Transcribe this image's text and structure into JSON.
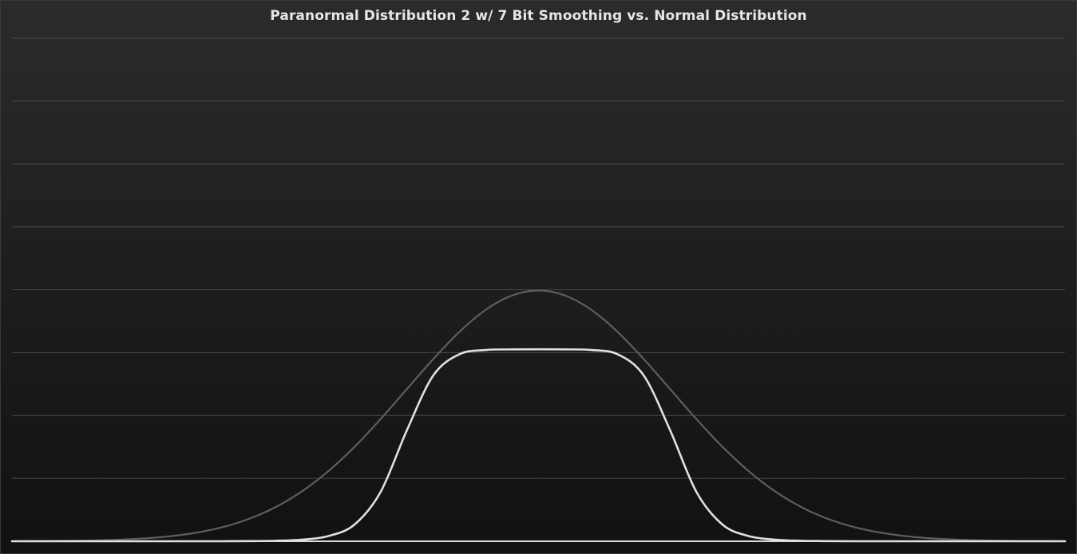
{
  "chart_data": {
    "type": "line",
    "title": "Paranormal Distribution 2 w/ 7 Bit Smoothing vs. Normal Distribution",
    "xlabel": "",
    "ylabel": "",
    "xlim": [
      -4,
      4
    ],
    "ylim": [
      0,
      0.8
    ],
    "grid": true,
    "legend": "none",
    "series": [
      {
        "color": "#5e5e5e",
        "x": [
          -4.0,
          -3.8,
          -3.6,
          -3.4,
          -3.2,
          -3.0,
          -2.8,
          -2.6,
          -2.4,
          -2.2,
          -2.0,
          -1.8,
          -1.6,
          -1.4,
          -1.2,
          -1.0,
          -0.8,
          -0.6,
          -0.4,
          -0.2,
          0.0,
          0.2,
          0.4,
          0.6,
          0.8,
          1.0,
          1.2,
          1.4,
          1.6,
          1.8,
          2.0,
          2.2,
          2.4,
          2.6,
          2.8,
          3.0,
          3.2,
          3.4,
          3.6,
          3.8,
          4.0
        ],
        "y": [
          0.0001,
          0.0003,
          0.0006,
          0.0012,
          0.0024,
          0.0044,
          0.0079,
          0.0136,
          0.0224,
          0.0355,
          0.054,
          0.079,
          0.1109,
          0.1497,
          0.1942,
          0.242,
          0.2897,
          0.3332,
          0.3683,
          0.391,
          0.3989,
          0.391,
          0.3683,
          0.3332,
          0.2897,
          0.242,
          0.1942,
          0.1497,
          0.1109,
          0.079,
          0.054,
          0.0355,
          0.0224,
          0.0136,
          0.0079,
          0.0044,
          0.0024,
          0.0012,
          0.0006,
          0.0003,
          0.0001
        ]
      },
      {
        "color": "#e0e0e0",
        "x": [
          -4.0,
          -3.8,
          -3.6,
          -3.4,
          -3.2,
          -3.0,
          -2.8,
          -2.6,
          -2.4,
          -2.2,
          -2.0,
          -1.8,
          -1.6,
          -1.4,
          -1.2,
          -1.0,
          -0.8,
          -0.6,
          -0.4,
          -0.2,
          0.0,
          0.2,
          0.4,
          0.6,
          0.8,
          1.0,
          1.2,
          1.4,
          1.6,
          1.8,
          2.0,
          2.2,
          2.4,
          2.6,
          2.8,
          3.0,
          3.2,
          3.4,
          3.6,
          3.8,
          4.0
        ],
        "y": [
          0.0,
          0.0,
          0.0,
          0.0,
          0.0,
          0.0,
          0.0,
          0.0,
          0.0,
          0.0002,
          0.0008,
          0.0025,
          0.0081,
          0.0262,
          0.0783,
          0.1765,
          0.2635,
          0.2975,
          0.3042,
          0.3051,
          0.3053,
          0.3051,
          0.3042,
          0.2975,
          0.2635,
          0.1765,
          0.0783,
          0.0262,
          0.0081,
          0.0025,
          0.0008,
          0.0002,
          0.0,
          0.0,
          0.0,
          0.0,
          0.0,
          0.0,
          0.0,
          0.0,
          0.0
        ]
      }
    ]
  }
}
